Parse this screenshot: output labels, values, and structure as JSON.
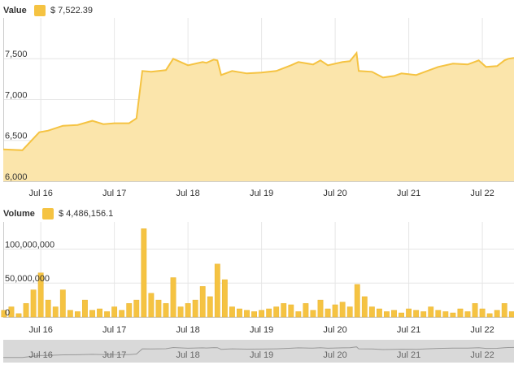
{
  "chart_data": [
    {
      "type": "area",
      "series": [
        {
          "name": "Value",
          "legend_value": "$ 7,522.39",
          "color": "#f5c342",
          "fill": "#fbe5ab",
          "values": [
            6390,
            6380,
            6600,
            6620,
            6680,
            6690,
            6740,
            6700,
            6710,
            6710,
            6770,
            7350,
            7340,
            7360,
            7500,
            7420,
            7460,
            7450,
            7490,
            7480,
            7300,
            7350,
            7320,
            7330,
            7350,
            7420,
            7460,
            7430,
            7480,
            7420,
            7460,
            7470,
            7570,
            7350,
            7340,
            7270,
            7290,
            7320,
            7300,
            7350,
            7400,
            7440,
            7430,
            7480,
            7400,
            7410,
            7480,
            7500,
            7510
          ]
        }
      ],
      "x": [
        15.49,
        15.75,
        15.98,
        16.1,
        16.3,
        16.5,
        16.7,
        16.85,
        17.0,
        17.2,
        17.3,
        17.38,
        17.5,
        17.7,
        17.8,
        18.0,
        18.2,
        18.25,
        18.35,
        18.4,
        18.45,
        18.6,
        18.8,
        19.0,
        19.2,
        19.4,
        19.5,
        19.7,
        19.8,
        19.9,
        20.1,
        20.2,
        20.29,
        20.32,
        20.5,
        20.65,
        20.8,
        20.9,
        21.1,
        21.25,
        21.4,
        21.6,
        21.8,
        21.95,
        22.05,
        22.2,
        22.3,
        22.35,
        22.43
      ],
      "xlim": [
        15.49,
        22.43
      ],
      "xticks": [
        {
          "value": 16,
          "label": "Jul 16"
        },
        {
          "value": 17,
          "label": "Jul 17"
        },
        {
          "value": 18,
          "label": "Jul 18"
        },
        {
          "value": 19,
          "label": "Jul 19"
        },
        {
          "value": 20,
          "label": "Jul 20"
        },
        {
          "value": 21,
          "label": "Jul 21"
        },
        {
          "value": 22,
          "label": "Jul 22"
        }
      ],
      "ylim": [
        6000,
        8000
      ],
      "yticks": [
        {
          "value": 6000,
          "label": "6,000"
        },
        {
          "value": 6500,
          "label": "6,500"
        },
        {
          "value": 7000,
          "label": "7,000"
        },
        {
          "value": 7500,
          "label": "7,500"
        }
      ],
      "grid": true
    },
    {
      "type": "bar",
      "series": [
        {
          "name": "Volume",
          "legend_value": "$ 4,486,156.1",
          "color": "#f5c342",
          "values": [
            10000000,
            15000000,
            5000000,
            20000000,
            40000000,
            65000000,
            25000000,
            15000000,
            40000000,
            10000000,
            8000000,
            25000000,
            10000000,
            12000000,
            8000000,
            15000000,
            10000000,
            20000000,
            25000000,
            130000000,
            35000000,
            25000000,
            20000000,
            58000000,
            15000000,
            20000000,
            25000000,
            45000000,
            30000000,
            78000000,
            55000000,
            15000000,
            12000000,
            10000000,
            8000000,
            10000000,
            12000000,
            15000000,
            20000000,
            18000000,
            8000000,
            20000000,
            10000000,
            25000000,
            12000000,
            18000000,
            22000000,
            15000000,
            48000000,
            30000000,
            15000000,
            12000000,
            8000000,
            10000000,
            6000000,
            12000000,
            10000000,
            8000000,
            15000000,
            10000000,
            8000000,
            6000000,
            12000000,
            8000000,
            20000000,
            12000000,
            5000000,
            10000000,
            20000000,
            8000000
          ]
        }
      ],
      "x": [
        15.5,
        15.6,
        15.7,
        15.8,
        15.9,
        16.0,
        16.1,
        16.2,
        16.3,
        16.4,
        16.5,
        16.6,
        16.7,
        16.8,
        16.9,
        17.0,
        17.1,
        17.2,
        17.3,
        17.4,
        17.5,
        17.6,
        17.7,
        17.8,
        17.9,
        18.0,
        18.1,
        18.2,
        18.3,
        18.4,
        18.5,
        18.6,
        18.7,
        18.8,
        18.9,
        19.0,
        19.1,
        19.2,
        19.3,
        19.4,
        19.5,
        19.6,
        19.7,
        19.8,
        19.9,
        20.0,
        20.1,
        20.2,
        20.3,
        20.4,
        20.5,
        20.6,
        20.7,
        20.8,
        20.9,
        21.0,
        21.1,
        21.2,
        21.3,
        21.4,
        21.5,
        21.6,
        21.7,
        21.8,
        21.9,
        22.0,
        22.1,
        22.2,
        22.3,
        22.4
      ],
      "xlim": [
        15.49,
        22.43
      ],
      "xticks": [
        {
          "value": 16,
          "label": "Jul 16"
        },
        {
          "value": 17,
          "label": "Jul 17"
        },
        {
          "value": 18,
          "label": "Jul 18"
        },
        {
          "value": 19,
          "label": "Jul 19"
        },
        {
          "value": 20,
          "label": "Jul 20"
        },
        {
          "value": 21,
          "label": "Jul 21"
        },
        {
          "value": 22,
          "label": "Jul 22"
        }
      ],
      "ylim": [
        0,
        140000000
      ],
      "yticks": [
        0,
        {
          "value": 50000000,
          "label": "50,000,000"
        },
        {
          "value": 100000000,
          "label": "100,000,000"
        }
      ],
      "grid": true
    }
  ]
}
